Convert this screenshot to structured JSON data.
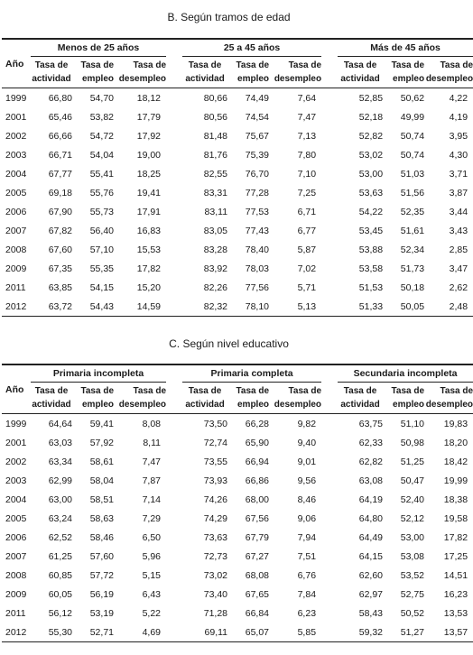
{
  "sectionB": {
    "title": "B. Según tramos de edad",
    "year_label": "Año",
    "groups": [
      "Menos de 25 años",
      "25 a 45 años",
      "Más de 45 años"
    ],
    "col_headers": [
      [
        "Tasa de",
        "actividad"
      ],
      [
        "Tasa de",
        "empleo"
      ],
      [
        "Tasa de",
        "desempleo"
      ]
    ],
    "rows": [
      [
        "1999",
        "66,80",
        "54,70",
        "18,12",
        "80,66",
        "74,49",
        "7,64",
        "52,85",
        "50,62",
        "4,22"
      ],
      [
        "2001",
        "65,46",
        "53,82",
        "17,79",
        "80,56",
        "74,54",
        "7,47",
        "52,18",
        "49,99",
        "4,19"
      ],
      [
        "2002",
        "66,66",
        "54,72",
        "17,92",
        "81,48",
        "75,67",
        "7,13",
        "52,82",
        "50,74",
        "3,95"
      ],
      [
        "2003",
        "66,71",
        "54,04",
        "19,00",
        "81,76",
        "75,39",
        "7,80",
        "53,02",
        "50,74",
        "4,30"
      ],
      [
        "2004",
        "67,77",
        "55,41",
        "18,25",
        "82,55",
        "76,70",
        "7,10",
        "53,00",
        "51,03",
        "3,71"
      ],
      [
        "2005",
        "69,18",
        "55,76",
        "19,41",
        "83,31",
        "77,28",
        "7,25",
        "53,63",
        "51,56",
        "3,87"
      ],
      [
        "2006",
        "67,90",
        "55,73",
        "17,91",
        "83,11",
        "77,53",
        "6,71",
        "54,22",
        "52,35",
        "3,44"
      ],
      [
        "2007",
        "67,82",
        "56,40",
        "16,83",
        "83,05",
        "77,43",
        "6,77",
        "53,45",
        "51,61",
        "3,43"
      ],
      [
        "2008",
        "67,60",
        "57,10",
        "15,53",
        "83,28",
        "78,40",
        "5,87",
        "53,88",
        "52,34",
        "2,85"
      ],
      [
        "2009",
        "67,35",
        "55,35",
        "17,82",
        "83,92",
        "78,03",
        "7,02",
        "53,58",
        "51,73",
        "3,47"
      ],
      [
        "2011",
        "63,85",
        "54,15",
        "15,20",
        "82,26",
        "77,56",
        "5,71",
        "51,53",
        "50,18",
        "2,62"
      ],
      [
        "2012",
        "63,72",
        "54,43",
        "14,59",
        "82,32",
        "78,10",
        "5,13",
        "51,33",
        "50,05",
        "2,48"
      ]
    ]
  },
  "sectionC": {
    "title": "C. Según nivel educativo",
    "year_label": "Año",
    "groups": [
      "Primaria incompleta",
      "Primaria completa",
      "Secundaria incompleta"
    ],
    "col_headers": [
      [
        "Tasa de",
        "actividad"
      ],
      [
        "Tasa de",
        "empleo"
      ],
      [
        "Tasa de",
        "desempleo"
      ]
    ],
    "rows": [
      [
        "1999",
        "64,64",
        "59,41",
        "8,08",
        "73,50",
        "66,28",
        "9,82",
        "63,75",
        "51,10",
        "19,83"
      ],
      [
        "2001",
        "63,03",
        "57,92",
        "8,11",
        "72,74",
        "65,90",
        "9,40",
        "62,33",
        "50,98",
        "18,20"
      ],
      [
        "2002",
        "63,34",
        "58,61",
        "7,47",
        "73,55",
        "66,94",
        "9,01",
        "62,82",
        "51,25",
        "18,42"
      ],
      [
        "2003",
        "62,99",
        "58,04",
        "7,87",
        "73,93",
        "66,86",
        "9,56",
        "63,08",
        "50,47",
        "19,99"
      ],
      [
        "2004",
        "63,00",
        "58,51",
        "7,14",
        "74,26",
        "68,00",
        "8,46",
        "64,19",
        "52,40",
        "18,38"
      ],
      [
        "2005",
        "63,24",
        "58,63",
        "7,29",
        "74,29",
        "67,56",
        "9,06",
        "64,80",
        "52,12",
        "19,58"
      ],
      [
        "2006",
        "62,52",
        "58,46",
        "6,50",
        "73,63",
        "67,79",
        "7,94",
        "64,49",
        "53,00",
        "17,82"
      ],
      [
        "2007",
        "61,25",
        "57,60",
        "5,96",
        "72,73",
        "67,27",
        "7,51",
        "64,15",
        "53,08",
        "17,25"
      ],
      [
        "2008",
        "60,85",
        "57,72",
        "5,15",
        "73,02",
        "68,08",
        "6,76",
        "62,60",
        "53,52",
        "14,51"
      ],
      [
        "2009",
        "60,05",
        "56,19",
        "6,43",
        "73,40",
        "67,65",
        "7,84",
        "62,97",
        "52,75",
        "16,23"
      ],
      [
        "2011",
        "56,12",
        "53,19",
        "5,22",
        "71,28",
        "66,84",
        "6,23",
        "58,43",
        "50,52",
        "13,53"
      ],
      [
        "2012",
        "55,30",
        "52,71",
        "4,69",
        "69,11",
        "65,07",
        "5,85",
        "59,32",
        "51,27",
        "13,57"
      ]
    ]
  }
}
